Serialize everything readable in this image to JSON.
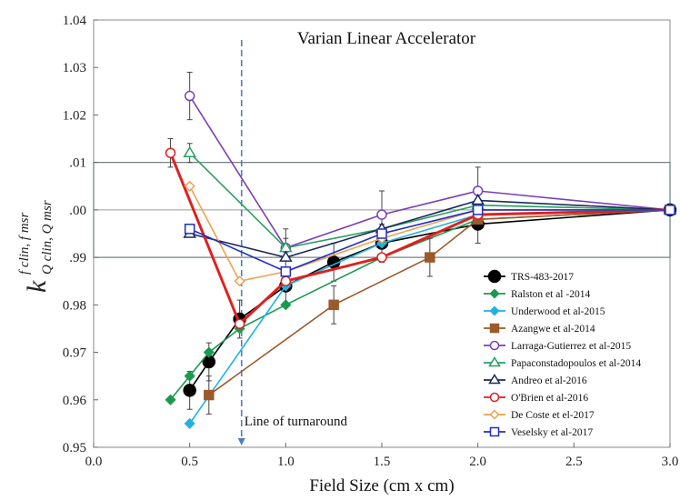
{
  "chart_data": {
    "type": "line",
    "title": "Varian Linear Accelerator",
    "xlabel": "Field Size (cm x cm)",
    "ylabel": {
      "base": "k",
      "sup": "f clin, f msr",
      "sub": "Q clin, Q msr"
    },
    "xlim": [
      0.0,
      3.0
    ],
    "ylim": [
      0.95,
      1.04
    ],
    "x_ticks": [
      "0.0",
      "0.5",
      "1.0",
      "1.5",
      "2.0",
      "2.5",
      "3.0"
    ],
    "y_ticks": [
      "0.95",
      "0.96",
      "0.97",
      "0.98",
      "0.99",
      "1.00",
      "1.01",
      "1.02",
      "1.03",
      "1.04"
    ],
    "y_tick_labels": [
      "0.95",
      "0.96",
      "0.97",
      "0.98",
      ".99",
      ".00",
      ".01",
      "1.02",
      "1.03",
      "1.04"
    ],
    "band": [
      0.99,
      1.01
    ],
    "reference_line": 1.0,
    "annotation": {
      "text": "Line of turnaround",
      "x": 0.77
    },
    "legend_position": "lower-right",
    "series": [
      {
        "name": "TRS-483-2017",
        "color": "#000000",
        "marker": "circle-filled",
        "x": [
          0.5,
          0.6,
          0.76,
          1.0,
          1.25,
          1.5,
          2.0,
          3.0
        ],
        "y": [
          0.962,
          0.968,
          0.977,
          0.984,
          0.989,
          0.993,
          0.997,
          1.0
        ],
        "err": [
          0.004,
          0.004,
          0.004,
          0.004,
          0.004,
          0.004,
          0.004,
          0.0
        ]
      },
      {
        "name": "Ralston et al -2014",
        "color": "#1a9a50",
        "marker": "diamond-filled",
        "x": [
          0.4,
          0.5,
          0.6,
          0.76,
          1.0,
          1.5,
          2.0,
          3.0
        ],
        "y": [
          0.96,
          0.965,
          0.97,
          0.975,
          0.98,
          0.99,
          0.998,
          1.0
        ]
      },
      {
        "name": "Underwood et al-2015",
        "color": "#1fb3e0",
        "marker": "diamond-filled",
        "x": [
          0.5,
          1.0,
          1.5,
          2.0,
          3.0
        ],
        "y": [
          0.955,
          0.984,
          0.993,
          0.999,
          1.0
        ]
      },
      {
        "name": "Azangwe et al-2014",
        "color": "#9c5a2b",
        "marker": "square-filled",
        "x": [
          0.6,
          1.25,
          1.75,
          2.0,
          3.0
        ],
        "y": [
          0.961,
          0.98,
          0.99,
          0.998,
          1.0
        ],
        "err": [
          0.004,
          0.004,
          0.004,
          0.0,
          0.0
        ]
      },
      {
        "name": "Larraga-Gutierrez et al-2015",
        "color": "#7a3fb8",
        "marker": "circle-open",
        "x": [
          0.5,
          1.0,
          1.5,
          2.0,
          3.0
        ],
        "y": [
          1.024,
          0.992,
          0.999,
          1.004,
          1.0
        ],
        "err": [
          0.005,
          0.004,
          0.005,
          0.005,
          0.0
        ]
      },
      {
        "name": "Papaconstadopoulos et al-2014",
        "color": "#28a060",
        "marker": "triangle-open",
        "x": [
          0.5,
          1.0,
          1.5,
          2.0,
          3.0
        ],
        "y": [
          1.012,
          0.992,
          0.996,
          1.001,
          1.0
        ],
        "err": [
          0.002,
          0.002,
          0.0,
          0.0,
          0.0
        ]
      },
      {
        "name": "Andreo et al-2016",
        "color": "#1c2a5a",
        "marker": "triangle-open",
        "x": [
          0.5,
          1.0,
          1.5,
          2.0,
          3.0
        ],
        "y": [
          0.995,
          0.99,
          0.996,
          1.002,
          1.0
        ]
      },
      {
        "name": "O'Brien et al-2016",
        "color": "#e02020",
        "marker": "circle-open",
        "x": [
          0.4,
          0.76,
          1.0,
          1.5,
          2.0,
          3.0
        ],
        "y": [
          1.012,
          0.976,
          0.985,
          0.99,
          0.999,
          1.0
        ],
        "err": [
          0.003,
          0.0,
          0.0,
          0.0,
          0.0,
          0.0
        ]
      },
      {
        "name": "De Coste et el-2017",
        "color": "#f0a050",
        "marker": "diamond-open",
        "x": [
          0.5,
          0.76,
          1.0,
          1.5,
          2.0,
          3.0
        ],
        "y": [
          1.005,
          0.985,
          0.987,
          0.994,
          1.0,
          1.0
        ]
      },
      {
        "name": "Veselsky et al-2017",
        "color": "#2030c0",
        "marker": "square-open",
        "x": [
          0.5,
          1.0,
          1.5,
          2.0,
          3.0
        ],
        "y": [
          0.996,
          0.987,
          0.995,
          1.0,
          1.0
        ]
      }
    ]
  }
}
